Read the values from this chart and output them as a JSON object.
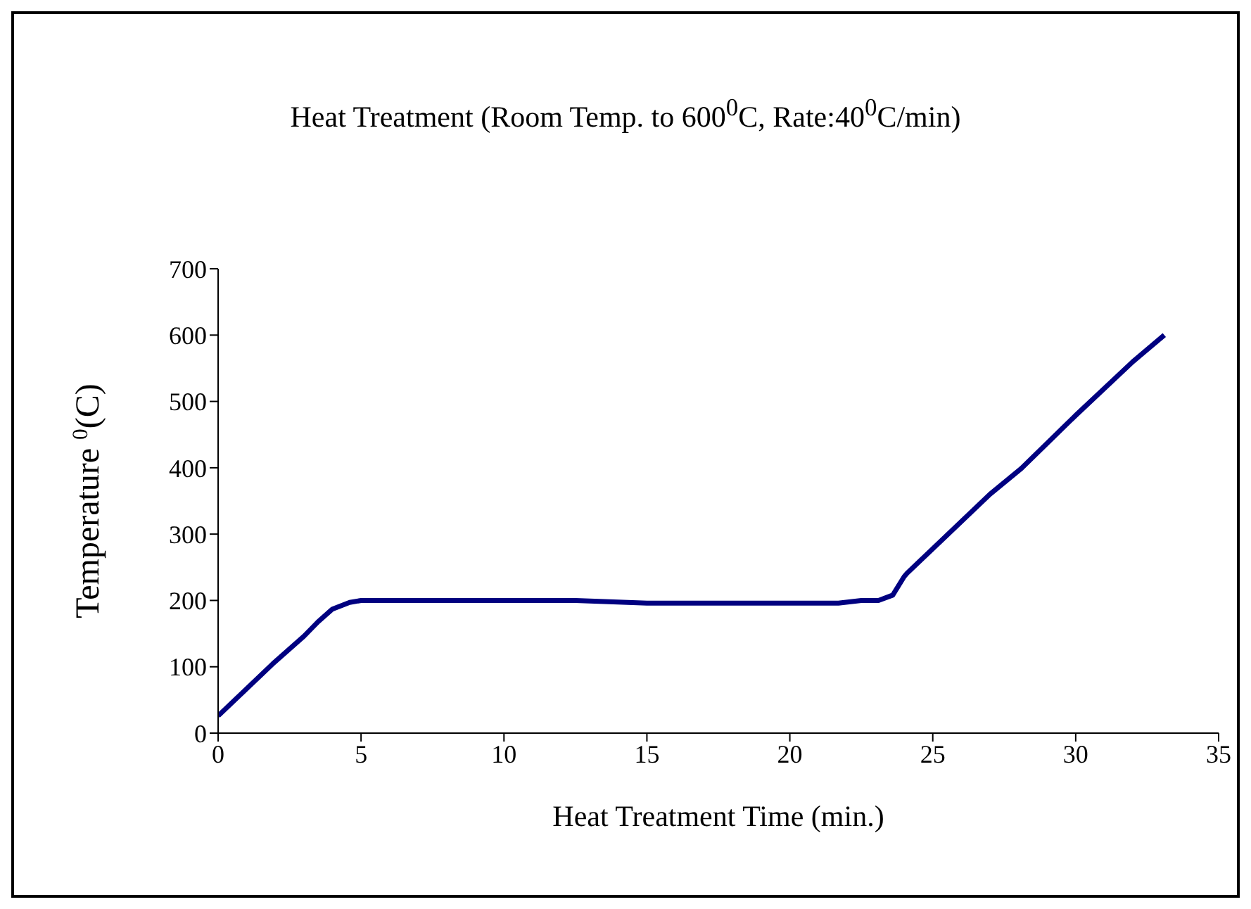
{
  "chart_data": {
    "type": "line",
    "title": "Heat Treatment (Room Temp. to 600$^{0}$C, Rate:40$^{0}$C/min)",
    "xlabel": "Heat Treatment Time (min.)",
    "ylabel": "Temperature $^{0}$(C)",
    "x": [
      0,
      1.9,
      3,
      3.5,
      4,
      4.6,
      5,
      12.5,
      15,
      21.7,
      22.5,
      23.1,
      23.6,
      24,
      24.1,
      27,
      28.1,
      30,
      32,
      33.1
    ],
    "series": [
      {
        "color": "#000080",
        "values": [
          26,
          104,
          146,
          168,
          187,
          197,
          200,
          200,
          196,
          196,
          200,
          200,
          208,
          236,
          241,
          360,
          399,
          479,
          560,
          600
        ]
      }
    ],
    "xlim": [
      0,
      35
    ],
    "xticks": [
      0,
      5,
      10,
      15,
      20,
      25,
      30,
      35
    ],
    "ylim": [
      0,
      700
    ],
    "yticks": [
      0,
      100,
      200,
      300,
      400,
      500,
      600,
      700
    ],
    "grid": false,
    "legend": false,
    "marker": "none",
    "line_style": "solid"
  }
}
